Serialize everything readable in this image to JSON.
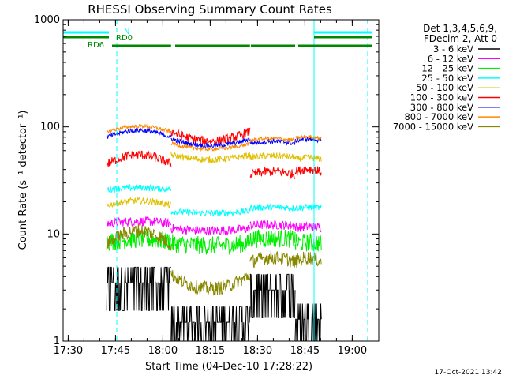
{
  "chart_data": {
    "type": "line",
    "title": "RHESSI Observing Summary Count Rates",
    "xlabel": "Start Time (04-Dec-10 17:28:22)",
    "ylabel": "Count Rate (s⁻¹ detector⁻¹)",
    "y_scale": "log",
    "ylim": [
      1,
      1000
    ],
    "xlim_minutes_after_1728": [
      0,
      100
    ],
    "x_ticks": [
      {
        "label": "17:30",
        "value": 1.6
      },
      {
        "label": "17:45",
        "value": 16.6
      },
      {
        "label": "18:00",
        "value": 31.6
      },
      {
        "label": "18:15",
        "value": 46.6
      },
      {
        "label": "18:30",
        "value": 61.6
      },
      {
        "label": "18:45",
        "value": 76.6
      },
      {
        "label": "19:00",
        "value": 91.6
      }
    ],
    "y_ticks": [
      {
        "label": "1",
        "value": 1
      },
      {
        "label": "10",
        "value": 10
      },
      {
        "label": "100",
        "value": 100
      },
      {
        "label": "1000",
        "value": 1000
      }
    ],
    "legend": {
      "header_line1": "Det 1,3,4,5,6,9,",
      "header_line2": "FDecim 2, Att 0",
      "position": "right"
    },
    "data_segments_minutes": [
      [
        13.8,
        34.2
      ],
      [
        34.2,
        59.2
      ],
      [
        59.2,
        73.5
      ],
      [
        73.5,
        81.8
      ]
    ],
    "series": [
      {
        "name": "3 - 6 keV",
        "color": "#000000",
        "levels": [
          3.5,
          1.5,
          3.0,
          1.6
        ],
        "noise": 0.5,
        "arc": 0.0
      },
      {
        "name": "6 - 12 keV",
        "color": "#ff00ff",
        "levels": [
          12.5,
          11.0,
          12.0,
          11.5
        ],
        "noise": 0.1,
        "arc": 0.05
      },
      {
        "name": "12 - 25 keV",
        "color": "#00ee00",
        "levels": [
          8.5,
          8.0,
          9.0,
          8.2
        ],
        "noise": 0.2,
        "arc": 0.05
      },
      {
        "name": "25 - 50 keV",
        "color": "#00ffff",
        "levels": [
          26.0,
          16.0,
          17.5,
          17.5
        ],
        "noise": 0.07,
        "arc": 0.04
      },
      {
        "name": "50 - 100 keV",
        "color": "#e0c000",
        "levels": [
          18.5,
          52.0,
          52.0,
          50.0
        ],
        "noise": 0.07,
        "arc": 0.1
      },
      {
        "name": "100 - 300 keV",
        "color": "#ff0000",
        "levels": [
          45.0,
          82.0,
          36.0,
          38.0
        ],
        "noise": 0.1,
        "arc": 0.2
      },
      {
        "name": "300 - 800 keV",
        "color": "#0000ff",
        "levels": [
          80.0,
          72.0,
          70.0,
          74.0
        ],
        "noise": 0.05,
        "arc": 0.15
      },
      {
        "name": "800 - 7000 keV",
        "color": "#ff8800",
        "levels": [
          90.0,
          66.0,
          75.0,
          78.0
        ],
        "noise": 0.04,
        "arc": 0.12
      },
      {
        "name": "7000 - 15000 keV",
        "color": "#888800",
        "levels": [
          8.0,
          3.6,
          5.5,
          5.5
        ],
        "noise": 0.15,
        "arc": 0.3
      }
    ],
    "flags": [
      {
        "label": "N",
        "color": "#00ffff",
        "intervals": [
          [
            0,
            14.5
          ],
          [
            79.5,
            98
          ]
        ]
      },
      {
        "label": "RD0",
        "color": "#008800",
        "intervals": [
          [
            0,
            14.5
          ],
          [
            79.5,
            98
          ]
        ]
      },
      {
        "label": "RD6",
        "color": "#008800",
        "intervals": [
          [
            15.5,
            34.2
          ],
          [
            35.5,
            59.2
          ],
          [
            59.5,
            73.5
          ],
          [
            74.5,
            98
          ]
        ]
      }
    ],
    "vertical_lines": [
      {
        "style": "dashed",
        "color": "#00ffff",
        "x": 17.0
      },
      {
        "style": "solid",
        "color": "#00ffff",
        "x": 79.5
      },
      {
        "style": "dashed",
        "color": "#00ffff",
        "x": 96.5
      }
    ]
  },
  "footer": {
    "timestamp": "17-Oct-2021 13:42"
  }
}
